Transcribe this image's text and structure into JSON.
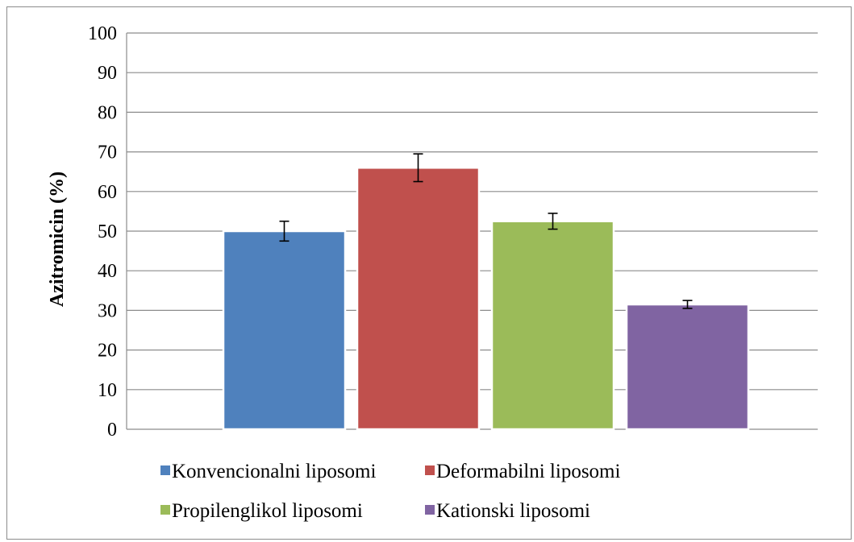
{
  "chart_data": {
    "type": "bar",
    "title": "",
    "xlabel": "",
    "ylabel": "Azitromicin (%)",
    "ylim": [
      0,
      100
    ],
    "yticks": [
      0,
      10,
      20,
      30,
      40,
      50,
      60,
      70,
      80,
      90,
      100
    ],
    "grid": true,
    "legend_position": "bottom",
    "series": [
      {
        "name": "Konvencionalni  liposomi",
        "value": 50.0,
        "error": 2.5,
        "color": "#4f81bd"
      },
      {
        "name": "Deformabilni  liposomi",
        "value": 66.0,
        "error": 3.5,
        "color": "#c0504d"
      },
      {
        "name": "Propilenglikol  liposomi",
        "value": 52.5,
        "error": 2.0,
        "color": "#9bbb59"
      },
      {
        "name": "Kationski  liposomi",
        "value": 31.5,
        "error": 1.0,
        "color": "#8064a2"
      }
    ]
  }
}
